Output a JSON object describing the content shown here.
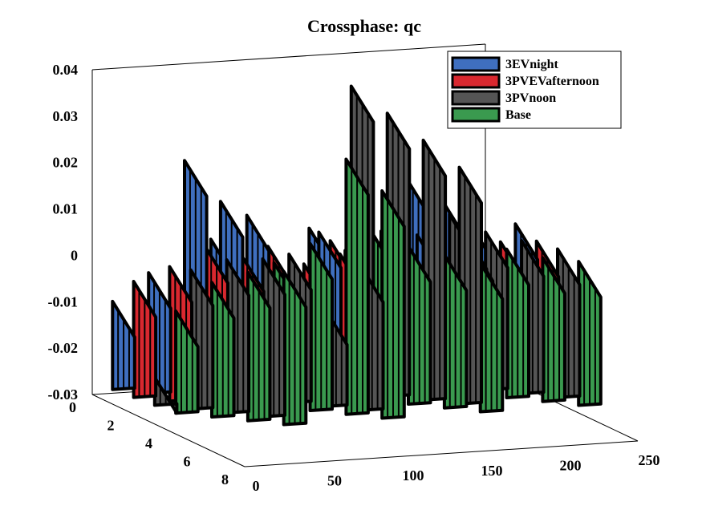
{
  "chart_data": {
    "type": "area",
    "title": "Crossphase: qc",
    "xlabel": "",
    "ylabel": "",
    "zlabel": "",
    "x_ticks": [
      "0",
      "50",
      "100",
      "150",
      "200",
      "250"
    ],
    "y_ticks": [
      "0",
      "2",
      "4",
      "6",
      "8"
    ],
    "z_ticks": [
      "0.04",
      "0.03",
      "0.02",
      "0.01",
      "0",
      "-0.01",
      "-0.02",
      "-0.03"
    ],
    "xlim": [
      0,
      250
    ],
    "ylim": [
      0,
      8
    ],
    "zlim": [
      -0.03,
      0.04
    ],
    "legend_position": "top-right",
    "series": [
      {
        "name": "3EVnight",
        "color": "#3f6fbf",
        "values": [
          -0.012,
          -0.005,
          0.02,
          0.012,
          0.0,
          0.006,
          -0.006,
          0.004,
          0.001,
          -0.003,
          0.002,
          0.002,
          0.01,
          0.006,
          -0.001,
          0.003
        ]
      },
      {
        "name": "3PVEVafternoon",
        "color": "#d9282f",
        "values": [
          -0.006,
          -0.002,
          0.003,
          0.002,
          0.0,
          0.001,
          -0.002,
          0.001,
          0.0,
          -0.001,
          0.001,
          0.0,
          0.001,
          0.001,
          0.0,
          0.001
        ]
      },
      {
        "name": "3PVnoon",
        "color": "#555555",
        "values": [
          -0.025,
          -0.001,
          0.002,
          0.003,
          -0.005,
          0.001,
          -0.01,
          0.0,
          0.035,
          0.03,
          0.025,
          0.02,
          0.006,
          0.003,
          0.002,
          0.001
        ]
      },
      {
        "name": "Base",
        "color": "#3a9a4f",
        "values": [
          -0.009,
          -0.002,
          0.001,
          0.002,
          0.0,
          0.005,
          0.024,
          0.018,
          0.005,
          0.003,
          0.002,
          0.001,
          0.001,
          0.001,
          0.0,
          0.0
        ]
      }
    ]
  }
}
